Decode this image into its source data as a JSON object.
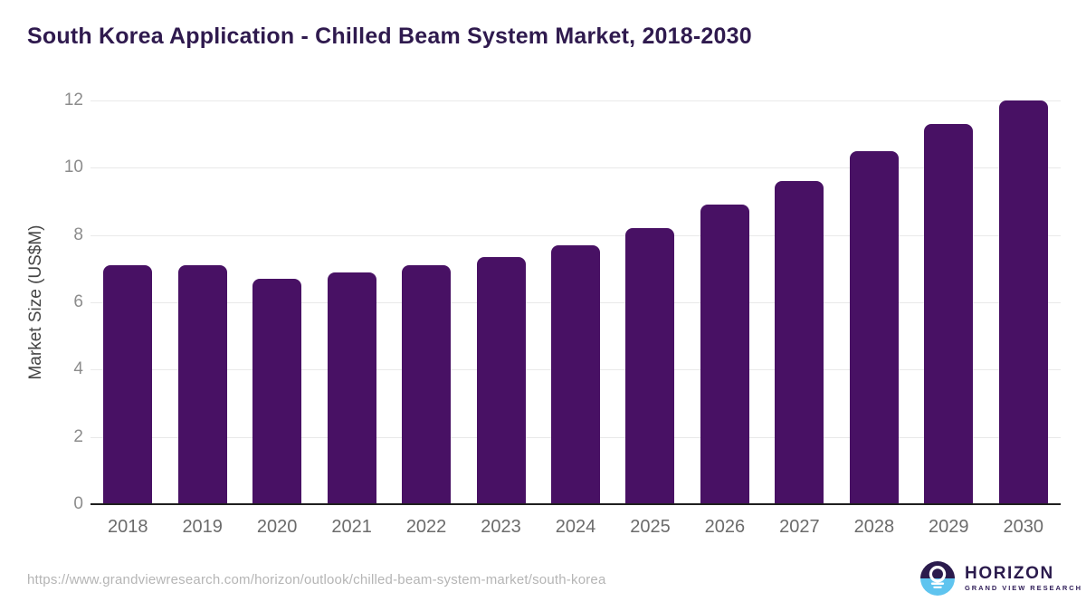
{
  "title": "South Korea Application - Chilled Beam System Market, 2018-2030",
  "chart_data": {
    "type": "bar",
    "title": "South Korea Application - Chilled Beam System Market, 2018-2030",
    "categories": [
      "2018",
      "2019",
      "2020",
      "2021",
      "2022",
      "2023",
      "2024",
      "2025",
      "2026",
      "2027",
      "2028",
      "2029",
      "2030"
    ],
    "values": [
      7.1,
      7.1,
      6.7,
      6.9,
      7.1,
      7.35,
      7.7,
      8.2,
      8.9,
      9.6,
      10.5,
      11.3,
      12.0
    ],
    "xlabel": "",
    "ylabel": "Market Size (US$M)",
    "ylim": [
      0,
      12
    ],
    "ytick_step": 2,
    "yticks": [
      "0",
      "2",
      "4",
      "6",
      "8",
      "10",
      "12"
    ],
    "grid": "horizontal-light",
    "legend": "none",
    "bar_color": "#481164"
  },
  "colors": {
    "bar": "#481164",
    "title_text": "#2F1A4E",
    "gridline": "#e9e9e9",
    "axis_line": "#1f1f1f",
    "tick_text": "#8c8c8c",
    "category_text": "#6b6b6b",
    "logo_navy": "#2B1B4D",
    "logo_blue": "#5FC4EF"
  },
  "footer": {
    "source_url": "https://www.grandviewresearch.com/horizon/outlook/chilled-beam-system-market/south-korea",
    "logo": {
      "name": "HORIZON",
      "subtitle": "GRAND VIEW RESEARCH"
    }
  }
}
